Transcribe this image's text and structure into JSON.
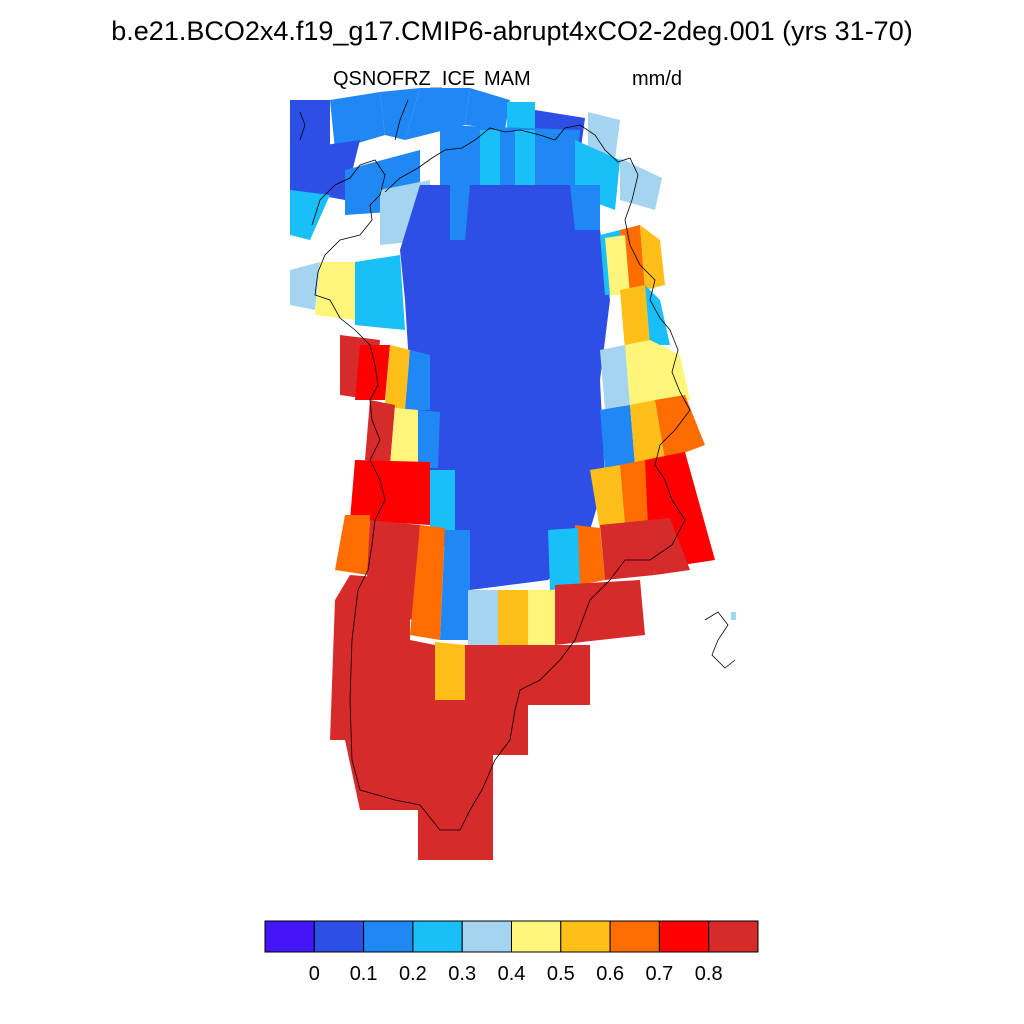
{
  "header": {
    "title": "b.e21.BCO2x4.f19_g17.CMIP6-abrupt4xCO2-2deg.001 (yrs 31-70)",
    "variable": "QSNOFRZ_ICE",
    "season": "MAM",
    "units": "mm/d"
  },
  "colorbar": {
    "colors": [
      "#4415f5",
      "#2e4fe5",
      "#2088f5",
      "#18bff8",
      "#a4d4f0",
      "#fff57a",
      "#ffbf18",
      "#ff6c00",
      "#ff0000",
      "#d72a2a"
    ],
    "labels": [
      "0",
      "0.1",
      "0.2",
      "0.3",
      "0.4",
      "0.5",
      "0.6",
      "0.7",
      "0.8"
    ]
  }
}
